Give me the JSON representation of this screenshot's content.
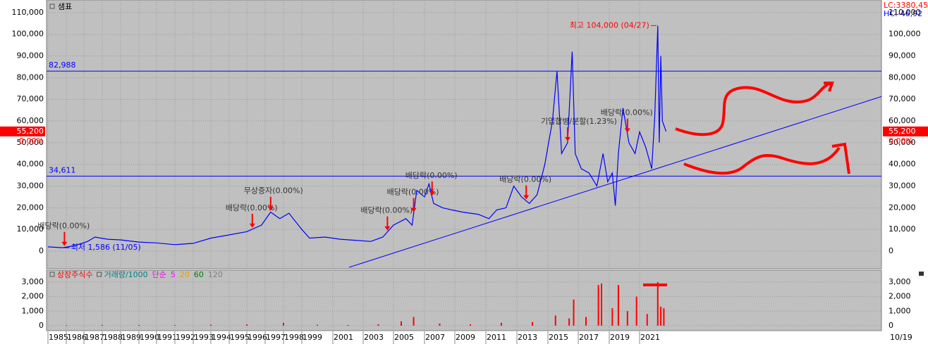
{
  "chart_data": [
    {
      "type": "line",
      "title": "샘표",
      "color": "#0000ff",
      "grid": true,
      "x": [
        1985.0,
        1985.8,
        1986.5,
        1987.2,
        1987.6,
        1988.3,
        1989.0,
        1990.0,
        1991.0,
        1992.0,
        1993.0,
        1994.0,
        1995.0,
        1996.0,
        1996.8,
        1997.3,
        1997.8,
        1998.3,
        1999.0,
        1999.5,
        2000.5,
        2001.5,
        2002.5,
        2003.5,
        2004.3,
        2005.0,
        2005.8,
        2006.2,
        2006.5,
        2007.0,
        2007.3,
        2007.6,
        2008.2,
        2008.8,
        2009.5,
        2010.5,
        2011.2,
        2011.7,
        2012.3,
        2012.8,
        2013.3,
        2013.8,
        2014.3,
        2014.8,
        2015.3,
        2015.6,
        2015.9,
        2016.3,
        2016.6,
        2016.8,
        2017.2,
        2017.7,
        2018.2,
        2018.6,
        2018.9,
        2019.2,
        2019.4,
        2019.6,
        2019.9,
        2020.3,
        2020.7,
        2021.0,
        2021.4,
        2021.8,
        2022.0,
        2022.2,
        2022.3,
        2022.4,
        2022.5,
        2022.75
      ],
      "values": [
        2000,
        1586,
        2600,
        4500,
        6500,
        5500,
        5200,
        4200,
        3800,
        3000,
        3600,
        6000,
        7500,
        9000,
        12000,
        18000,
        15000,
        17500,
        10000,
        6000,
        6500,
        5500,
        5000,
        4500,
        6500,
        12000,
        15000,
        12000,
        28000,
        25000,
        31000,
        22000,
        20000,
        19000,
        18000,
        17000,
        15000,
        19000,
        20000,
        30000,
        25000,
        22000,
        26000,
        40000,
        60000,
        83000,
        45000,
        50000,
        92000,
        45000,
        38000,
        36000,
        30000,
        45000,
        32000,
        36000,
        21000,
        45000,
        66000,
        50000,
        45000,
        55000,
        48000,
        38000,
        62000,
        104000,
        50000,
        90000,
        60000,
        55200
      ],
      "ylim": [
        -8100,
        115800
      ],
      "yticks": [
        0,
        {
          "value": 10000,
          "label": "10,000"
        },
        {
          "value": 20000,
          "label": "20,000"
        },
        {
          "value": 30000,
          "label": "30,000"
        },
        {
          "value": 40000,
          "label": "40,000"
        },
        {
          "value": 50000,
          "label": "50,000"
        },
        {
          "value": 60000,
          "label": "60,000"
        },
        {
          "value": 70000,
          "label": "70,000"
        },
        {
          "value": 80000,
          "label": "80,000"
        },
        {
          "value": 90000,
          "label": "90,000"
        },
        {
          "value": 100000,
          "label": "100,000"
        },
        {
          "value": 110000,
          "label": "110,000"
        }
      ],
      "xticks": [
        1985,
        1986,
        1987,
        1988,
        1989,
        1990,
        1991,
        1992,
        1993,
        1994,
        1995,
        1996,
        1997,
        1998,
        1999,
        2001,
        2003,
        2005,
        2007,
        2009,
        2011,
        2013,
        2015,
        2017,
        2019,
        2021
      ],
      "x_end_label": "10/19",
      "hlines": [
        {
          "value": 82988,
          "label": "82,988"
        },
        {
          "value": 34611,
          "label": "34,611"
        }
      ],
      "trendline": {
        "x": [
          2002.07,
          2036.95
        ],
        "values": [
          -7450,
          71290
        ]
      },
      "high_label": "최고 104,000 (04/27)",
      "low_label": "최저 1,586 (11/05)",
      "current": {
        "value": 55200,
        "label": "55,200"
      },
      "change_label": "0.00%",
      "lc_label": "LC:3380,45",
      "hc_label": "HC:-46,92",
      "events": [
        {
          "label": "배당락(0.00%)",
          "x": 1985.9
        },
        {
          "label": "배당락(0.00%)",
          "x": 1996.3
        },
        {
          "label": "무상증자(0.00%)",
          "x": 1997.3
        },
        {
          "label": "배당락(0.00%)",
          "x": 2004.6
        },
        {
          "label": "배당락(0.00%)",
          "x": 2006.3
        },
        {
          "label": "배당락(0.00%)",
          "x": 2007.5
        },
        {
          "label": "배당락(0.00%)",
          "x": 2013.6
        },
        {
          "label": "기업합병/분할(1.23%)",
          "x": 2016.3
        },
        {
          "label": "배당락(0.00%)",
          "x": 2020.2
        }
      ]
    },
    {
      "type": "bar",
      "color": "#ff0000",
      "legend": [
        {
          "name": "상장주식수",
          "color": "#ff0000"
        },
        {
          "name": "거래량/1000",
          "color": "#008080"
        },
        {
          "name": "단순",
          "color": "#ff00ff"
        },
        {
          "name": "5",
          "color": "#ff00ff"
        },
        {
          "name": "20",
          "color": "#e0a000"
        },
        {
          "name": "60",
          "color": "#008000"
        },
        {
          "name": "120",
          "color": "#808080"
        }
      ],
      "x": [
        1986,
        1988,
        1990,
        1992,
        1994,
        1996,
        1998,
        2000,
        2002,
        2004,
        2005.5,
        2006.3,
        2008,
        2010,
        2012,
        2014,
        2015.5,
        2016.4,
        2016.7,
        2017.5,
        2018.3,
        2018.5,
        2019.2,
        2019.6,
        2020.2,
        2020.8,
        2021.5,
        2022.2,
        2022.4,
        2022.6
      ],
      "values": [
        40,
        60,
        50,
        40,
        70,
        90,
        200,
        60,
        50,
        100,
        300,
        600,
        150,
        100,
        200,
        250,
        700,
        500,
        1800,
        600,
        2800,
        2900,
        1200,
        2800,
        1000,
        2000,
        800,
        3000,
        1300,
        1200
      ],
      "ylim": [
        -340,
        3820
      ],
      "yticks": [
        0,
        {
          "value": 1000,
          "label": "1,000"
        },
        {
          "value": 2000,
          "label": "2,000"
        },
        {
          "value": 3000,
          "label": "3,000"
        }
      ]
    }
  ]
}
